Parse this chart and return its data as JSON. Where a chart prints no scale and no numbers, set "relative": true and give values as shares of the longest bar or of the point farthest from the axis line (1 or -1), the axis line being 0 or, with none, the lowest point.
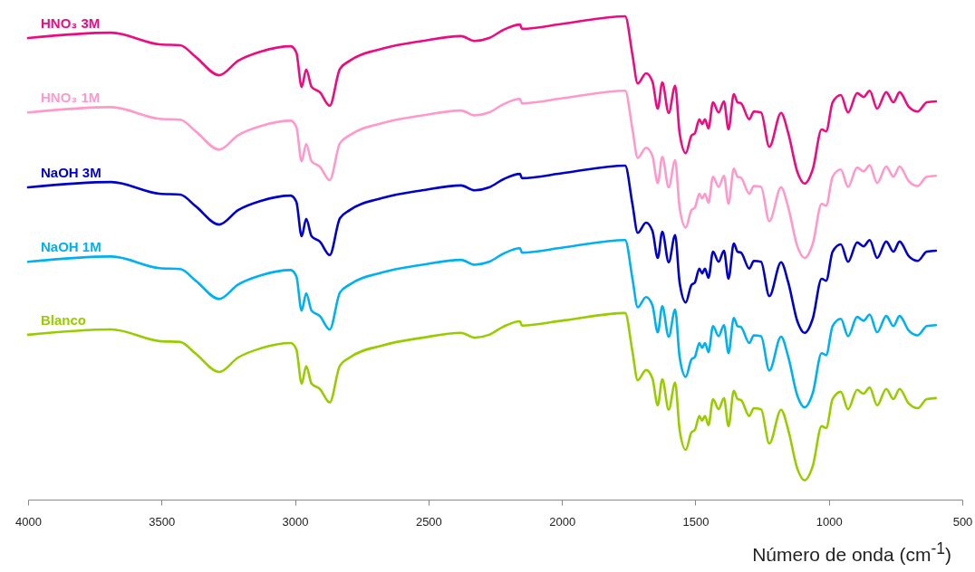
{
  "chart_data": {
    "type": "line",
    "relative": true,
    "xlabel": "Número de onda (cm$^{-1}$)",
    "x": [
      4000,
      3688,
      3508,
      3430,
      3372,
      3284,
      3213,
      3128,
      3016,
      2995,
      2975,
      2958,
      2938,
      2907,
      2870,
      2832,
      2795,
      2673,
      2523,
      2378,
      2327,
      2273,
      2219,
      2157,
      2150,
      1991,
      1763,
      1736,
      1716,
      1685,
      1661,
      1641,
      1624,
      1600,
      1576,
      1559,
      1536,
      1515,
      1502,
      1485,
      1475,
      1464,
      1451,
      1434,
      1413,
      1393,
      1376,
      1356,
      1342,
      1329,
      1298,
      1281,
      1254,
      1223,
      1179,
      1152,
      1118,
      1091,
      1060,
      1027,
      1010,
      986,
      955,
      928,
      894,
      870,
      847,
      819,
      785,
      758,
      735,
      701,
      667,
      633,
      599
    ],
    "xlim": [
      4000,
      500
    ],
    "xticks": [
      4000,
      3500,
      3000,
      2500,
      2000,
      1500,
      1000,
      500
    ],
    "grid": false,
    "line_style": "solid",
    "marker": "none",
    "series": [
      {
        "name": "HNO₃ 3M",
        "color": "#ec0b80",
        "values": [
          0.955,
          0.966,
          0.942,
          0.94,
          0.916,
          0.878,
          0.908,
          0.927,
          0.938,
          0.925,
          0.854,
          0.89,
          0.854,
          0.843,
          0.815,
          0.891,
          0.908,
          0.933,
          0.949,
          0.959,
          0.949,
          0.955,
          0.972,
          0.983,
          0.974,
          0.985,
          1,
          0.921,
          0.861,
          0.882,
          0.865,
          0.809,
          0.863,
          0.8,
          0.856,
          0.758,
          0.717,
          0.753,
          0.758,
          0.787,
          0.777,
          0.787,
          0.768,
          0.822,
          0.801,
          0.824,
          0.766,
          0.839,
          0.822,
          0.82,
          0.787,
          0.803,
          0.801,
          0.73,
          0.8,
          0.758,
          0.678,
          0.654,
          0.684,
          0.766,
          0.762,
          0.822,
          0.837,
          0.801,
          0.841,
          0.833,
          0.846,
          0.809,
          0.843,
          0.822,
          0.843,
          0.813,
          0.803,
          0.822,
          0.824
        ]
      },
      {
        "name": "HNO₃ 1M",
        "color": "#ff99cc",
        "values": [
          0.801,
          0.812,
          0.788,
          0.786,
          0.762,
          0.724,
          0.754,
          0.773,
          0.784,
          0.771,
          0.7,
          0.736,
          0.7,
          0.689,
          0.661,
          0.737,
          0.754,
          0.779,
          0.795,
          0.805,
          0.795,
          0.801,
          0.818,
          0.829,
          0.82,
          0.831,
          0.846,
          0.767,
          0.707,
          0.728,
          0.711,
          0.655,
          0.709,
          0.646,
          0.702,
          0.604,
          0.563,
          0.599,
          0.604,
          0.633,
          0.623,
          0.633,
          0.614,
          0.668,
          0.647,
          0.67,
          0.612,
          0.685,
          0.668,
          0.666,
          0.633,
          0.649,
          0.647,
          0.576,
          0.646,
          0.604,
          0.524,
          0.5,
          0.53,
          0.612,
          0.608,
          0.668,
          0.683,
          0.647,
          0.687,
          0.679,
          0.692,
          0.655,
          0.689,
          0.668,
          0.689,
          0.659,
          0.649,
          0.668,
          0.67
        ]
      },
      {
        "name": "NaOH 3M",
        "color": "#0000cc",
        "values": [
          0.646,
          0.657,
          0.633,
          0.631,
          0.607,
          0.569,
          0.599,
          0.618,
          0.629,
          0.616,
          0.545,
          0.581,
          0.545,
          0.534,
          0.506,
          0.582,
          0.599,
          0.624,
          0.64,
          0.65,
          0.64,
          0.646,
          0.663,
          0.674,
          0.665,
          0.676,
          0.691,
          0.612,
          0.552,
          0.573,
          0.556,
          0.5,
          0.554,
          0.491,
          0.547,
          0.449,
          0.408,
          0.444,
          0.449,
          0.478,
          0.468,
          0.478,
          0.459,
          0.513,
          0.492,
          0.515,
          0.457,
          0.53,
          0.513,
          0.511,
          0.478,
          0.494,
          0.492,
          0.421,
          0.491,
          0.449,
          0.369,
          0.345,
          0.375,
          0.457,
          0.453,
          0.513,
          0.528,
          0.492,
          0.532,
          0.524,
          0.537,
          0.5,
          0.534,
          0.513,
          0.534,
          0.504,
          0.494,
          0.513,
          0.515
        ]
      },
      {
        "name": "NaOH 1M",
        "color": "#00b0f0",
        "values": [
          0.492,
          0.503,
          0.479,
          0.477,
          0.453,
          0.415,
          0.445,
          0.464,
          0.475,
          0.462,
          0.391,
          0.427,
          0.391,
          0.38,
          0.352,
          0.428,
          0.445,
          0.47,
          0.486,
          0.496,
          0.486,
          0.492,
          0.509,
          0.52,
          0.511,
          0.522,
          0.537,
          0.458,
          0.398,
          0.419,
          0.402,
          0.346,
          0.4,
          0.337,
          0.393,
          0.295,
          0.254,
          0.29,
          0.295,
          0.324,
          0.314,
          0.324,
          0.305,
          0.359,
          0.338,
          0.361,
          0.303,
          0.376,
          0.359,
          0.357,
          0.324,
          0.34,
          0.338,
          0.267,
          0.337,
          0.295,
          0.215,
          0.191,
          0.221,
          0.303,
          0.299,
          0.359,
          0.374,
          0.338,
          0.378,
          0.37,
          0.383,
          0.346,
          0.38,
          0.359,
          0.38,
          0.35,
          0.34,
          0.359,
          0.361
        ]
      },
      {
        "name": "Blanco",
        "color": "#99cc00",
        "values": [
          0.341,
          0.352,
          0.328,
          0.326,
          0.302,
          0.264,
          0.294,
          0.313,
          0.324,
          0.311,
          0.24,
          0.276,
          0.24,
          0.229,
          0.201,
          0.277,
          0.294,
          0.319,
          0.335,
          0.345,
          0.335,
          0.341,
          0.358,
          0.369,
          0.36,
          0.371,
          0.386,
          0.307,
          0.247,
          0.268,
          0.251,
          0.195,
          0.249,
          0.186,
          0.242,
          0.144,
          0.103,
          0.139,
          0.144,
          0.173,
          0.163,
          0.173,
          0.154,
          0.208,
          0.187,
          0.21,
          0.152,
          0.225,
          0.208,
          0.206,
          0.173,
          0.189,
          0.187,
          0.116,
          0.186,
          0.144,
          0.064,
          0.04,
          0.07,
          0.152,
          0.148,
          0.208,
          0.223,
          0.187,
          0.227,
          0.219,
          0.232,
          0.195,
          0.229,
          0.208,
          0.229,
          0.199,
          0.189,
          0.208,
          0.21
        ]
      }
    ]
  }
}
